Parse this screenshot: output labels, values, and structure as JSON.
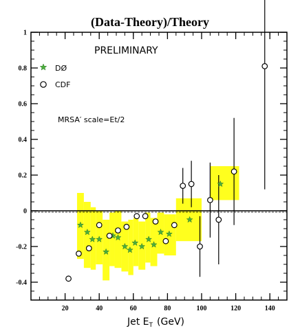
{
  "chart_data": {
    "type": "scatter",
    "title": "(Data-Theory)/Theory",
    "xlabel": "Jet E",
    "xlabel_sub": "T",
    "xlabel_unit": "(GeV)",
    "xlim": [
      0,
      150
    ],
    "ylim": [
      -0.5,
      1.0
    ],
    "x_ticks": [
      20,
      40,
      60,
      80,
      100,
      120,
      140
    ],
    "y_ticks": [
      -0.4,
      -0.2,
      0,
      0.2,
      0.4,
      0.6,
      0.8,
      1
    ],
    "y_tick_labels": [
      "-0.4",
      "-0.2",
      "0",
      "0.2",
      "0.4",
      "0.6",
      "0.8",
      "1"
    ],
    "zero_line": 0,
    "annotations": {
      "preliminary": "PRELIMINARY",
      "model": "MRSA′ scale=Et/2"
    },
    "colors": {
      "band": "#ffff1e",
      "star": "#4cae3c",
      "axis": "#000000"
    },
    "series": [
      {
        "name": "DØ",
        "marker": "star",
        "points": [
          {
            "x": 29,
            "y": -0.08,
            "err": 0
          },
          {
            "x": 33,
            "y": -0.12,
            "err": 0
          },
          {
            "x": 36,
            "y": -0.16,
            "err": 0
          },
          {
            "x": 40,
            "y": -0.16,
            "err": 0
          },
          {
            "x": 44,
            "y": -0.23,
            "err": 0
          },
          {
            "x": 48,
            "y": -0.14,
            "err": 0
          },
          {
            "x": 51,
            "y": -0.15,
            "err": 0
          },
          {
            "x": 55,
            "y": -0.2,
            "err": 0
          },
          {
            "x": 58,
            "y": -0.22,
            "err": 0
          },
          {
            "x": 61,
            "y": -0.18,
            "err": 0
          },
          {
            "x": 65,
            "y": -0.2,
            "err": 0
          },
          {
            "x": 69,
            "y": -0.16,
            "err": 0
          },
          {
            "x": 72,
            "y": -0.19,
            "err": 0
          },
          {
            "x": 76,
            "y": -0.12,
            "err": 0
          },
          {
            "x": 81,
            "y": -0.13,
            "err": 0
          },
          {
            "x": 93,
            "y": -0.05,
            "err": 0
          },
          {
            "x": 111,
            "y": 0.15,
            "err": 0
          }
        ]
      },
      {
        "name": "CDF",
        "marker": "circle",
        "points": [
          {
            "x": 22,
            "y": -0.38,
            "err": 0
          },
          {
            "x": 28,
            "y": -0.24,
            "err": 0
          },
          {
            "x": 34,
            "y": -0.21,
            "err": 0
          },
          {
            "x": 40,
            "y": -0.08,
            "err": 0
          },
          {
            "x": 46,
            "y": -0.14,
            "err": 0
          },
          {
            "x": 51,
            "y": -0.11,
            "err": 0
          },
          {
            "x": 56,
            "y": -0.09,
            "err": 0
          },
          {
            "x": 62,
            "y": -0.03,
            "err": 0
          },
          {
            "x": 67,
            "y": -0.03,
            "err": 0
          },
          {
            "x": 73,
            "y": -0.06,
            "err": 0
          },
          {
            "x": 79,
            "y": -0.17,
            "err": 0
          },
          {
            "x": 84,
            "y": -0.08,
            "err": 0
          },
          {
            "x": 89,
            "y": 0.14,
            "err": 0.1
          },
          {
            "x": 94,
            "y": 0.15,
            "err": 0.13
          },
          {
            "x": 99,
            "y": -0.2,
            "err": 0.17
          },
          {
            "x": 105,
            "y": 0.06,
            "err": 0.21
          },
          {
            "x": 110,
            "y": -0.05,
            "err": 0.25
          },
          {
            "x": 119,
            "y": 0.22,
            "err": 0.3
          },
          {
            "x": 137,
            "y": 0.81,
            "err": 0.69
          }
        ]
      }
    ],
    "band": [
      {
        "x0": 27,
        "x1": 31,
        "lo": -0.27,
        "hi": 0.1
      },
      {
        "x0": 31,
        "x1": 35,
        "lo": -0.32,
        "hi": 0.05
      },
      {
        "x0": 35,
        "x1": 38,
        "lo": -0.33,
        "hi": 0.02
      },
      {
        "x0": 38,
        "x1": 42,
        "lo": -0.3,
        "hi": 0.0
      },
      {
        "x0": 42,
        "x1": 46,
        "lo": -0.39,
        "hi": -0.05
      },
      {
        "x0": 46,
        "x1": 49,
        "lo": -0.31,
        "hi": -0.01
      },
      {
        "x0": 49,
        "x1": 53,
        "lo": -0.32,
        "hi": 0.0
      },
      {
        "x0": 53,
        "x1": 57,
        "lo": -0.34,
        "hi": -0.06
      },
      {
        "x0": 57,
        "x1": 60,
        "lo": -0.36,
        "hi": -0.05
      },
      {
        "x0": 60,
        "x1": 63,
        "lo": -0.31,
        "hi": -0.04
      },
      {
        "x0": 63,
        "x1": 67,
        "lo": -0.33,
        "hi": -0.06
      },
      {
        "x0": 67,
        "x1": 70,
        "lo": -0.29,
        "hi": -0.01
      },
      {
        "x0": 70,
        "x1": 74,
        "lo": -0.31,
        "hi": -0.04
      },
      {
        "x0": 74,
        "x1": 78,
        "lo": -0.24,
        "hi": -0.01
      },
      {
        "x0": 78,
        "x1": 85,
        "lo": -0.25,
        "hi": -0.02
      },
      {
        "x0": 85,
        "x1": 100,
        "lo": -0.17,
        "hi": 0.07
      },
      {
        "x0": 105,
        "x1": 122,
        "lo": 0.06,
        "hi": 0.25
      }
    ]
  }
}
